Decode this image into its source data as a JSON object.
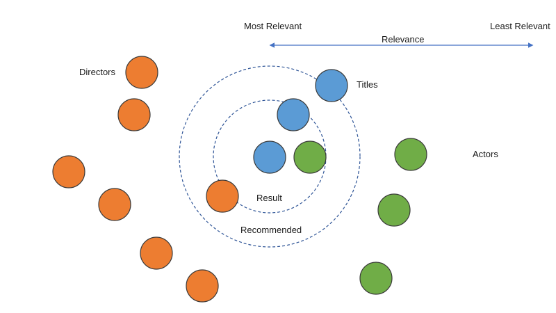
{
  "labels": {
    "most_relevant": "Most Relevant",
    "least_relevant": "Least Relevant",
    "relevance": "Relevance",
    "directors": "Directors",
    "titles": "Titles",
    "actors": "Actors",
    "result": "Result",
    "recommended": "Recommended"
  },
  "colors": {
    "directors": "#ED7D31",
    "titles": "#5B9BD5",
    "actors": "#70AD47",
    "ring": "#2F5597",
    "arrow": "#4472C4",
    "node_stroke": "#3A3A3A"
  },
  "node_groups": [
    {
      "group": "directors",
      "count": 7
    },
    {
      "group": "titles",
      "count": 3
    },
    {
      "group": "actors",
      "count": 4
    }
  ]
}
